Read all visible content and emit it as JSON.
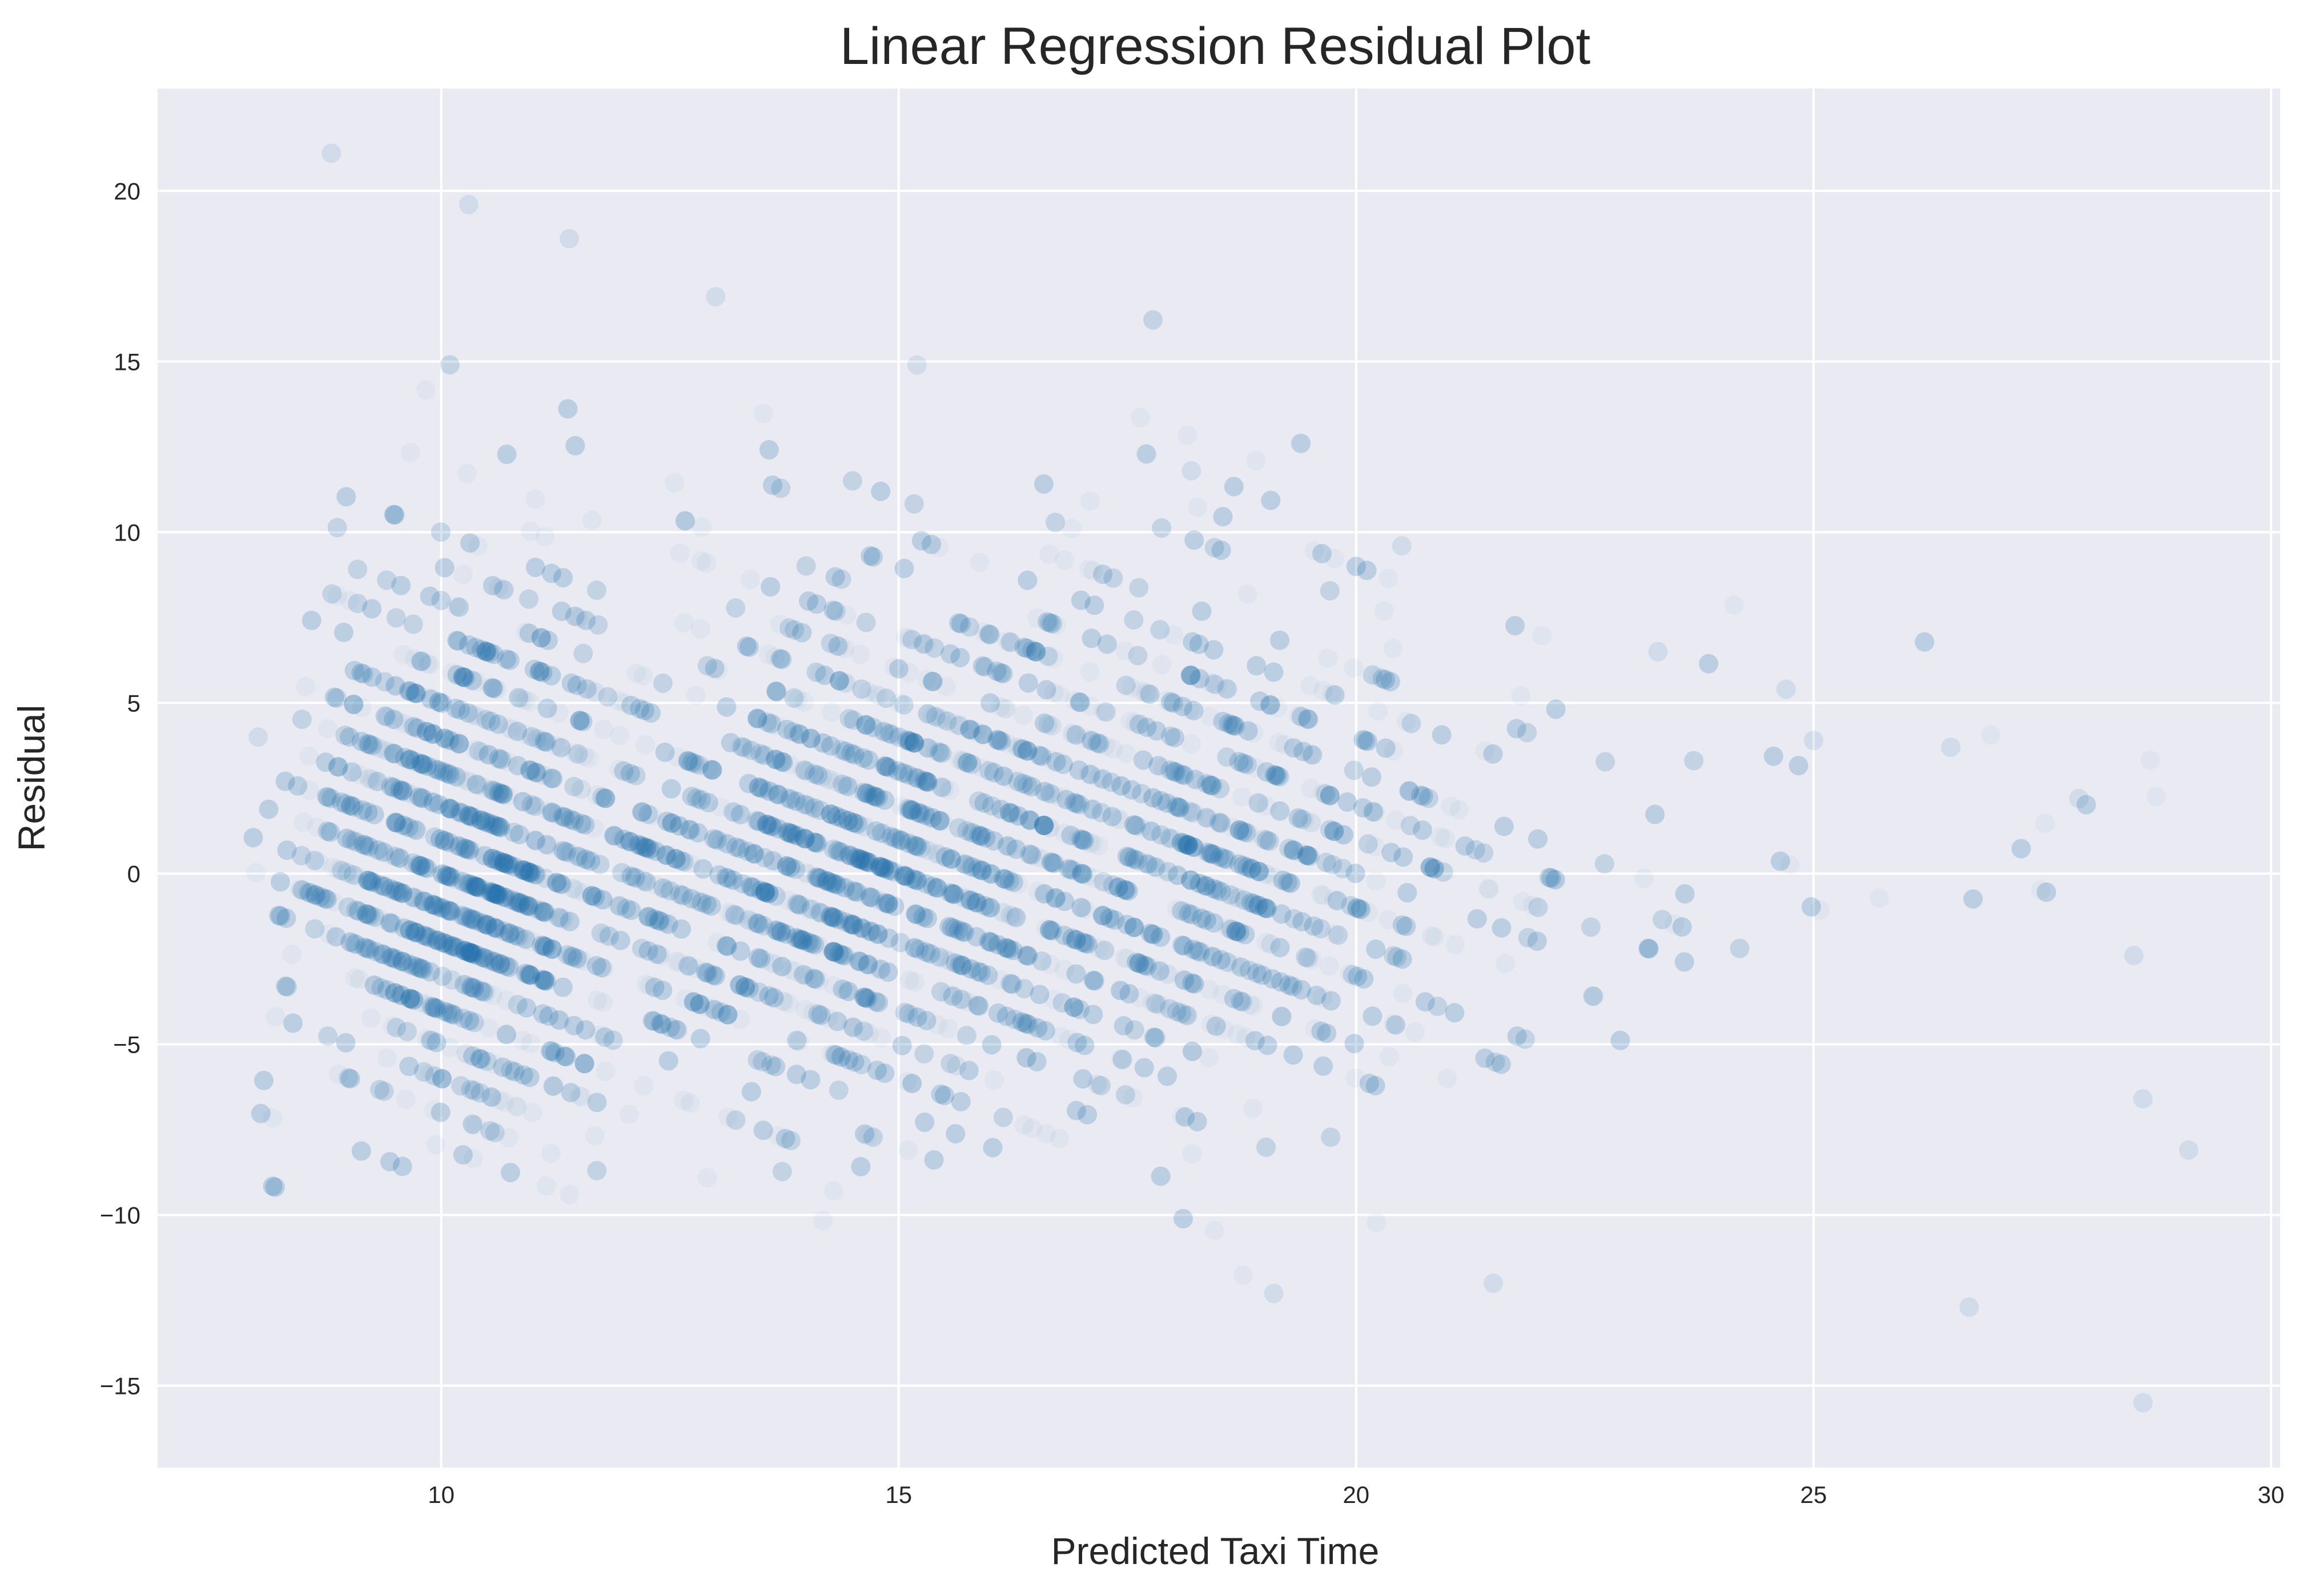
{
  "chart_data": {
    "type": "scatter",
    "title": "Linear Regression Residual Plot",
    "xlabel": "Predicted Taxi Time",
    "ylabel": "Residual",
    "xlim": [
      6.9,
      30.1
    ],
    "ylim": [
      -17.4,
      23.0
    ],
    "xticks": [
      10,
      15,
      20,
      25,
      30
    ],
    "yticks": [
      -15,
      -10,
      -5,
      0,
      5,
      10,
      15,
      20
    ],
    "xtick_labels": [
      "10",
      "15",
      "20",
      "25",
      "30"
    ],
    "ytick_labels": [
      "−15",
      "−10",
      "−5",
      "0",
      "5",
      "10",
      "15",
      "20"
    ],
    "grid": true,
    "background_color": "#eaeaf2",
    "point_color": "#1f77b4",
    "point_alpha": 0.05,
    "pattern": "Dense diagonal bands of points: each band follows residual = k - predicted for integer k; points concentrated for predicted taxi time ~8 to ~24, sparse outliers out to ~29.",
    "bands_k_range": [
      4,
      40
    ],
    "points_sample": [
      {
        "x": 8.8,
        "y": 21.1
      },
      {
        "x": 10.3,
        "y": 19.6
      },
      {
        "x": 11.4,
        "y": 18.6
      },
      {
        "x": 13.0,
        "y": 16.9
      },
      {
        "x": 15.2,
        "y": 14.9
      },
      {
        "x": 18.2,
        "y": 11.8
      },
      {
        "x": 20.5,
        "y": 9.6
      },
      {
        "x": 23.3,
        "y": 6.5
      },
      {
        "x": 24.7,
        "y": 5.4
      },
      {
        "x": 25.0,
        "y": 3.9
      },
      {
        "x": 26.5,
        "y": 3.7
      },
      {
        "x": 27.9,
        "y": 2.2
      },
      {
        "x": 28.5,
        "y": -2.4
      },
      {
        "x": 28.6,
        "y": -6.6
      },
      {
        "x": 29.1,
        "y": -8.1
      },
      {
        "x": 28.6,
        "y": -15.5
      },
      {
        "x": 26.7,
        "y": -12.7
      },
      {
        "x": 19.1,
        "y": -12.3
      },
      {
        "x": 21.5,
        "y": -12.0
      },
      {
        "x": 10.5,
        "y": -5.5
      },
      {
        "x": 8.0,
        "y": 4.0
      }
    ]
  }
}
